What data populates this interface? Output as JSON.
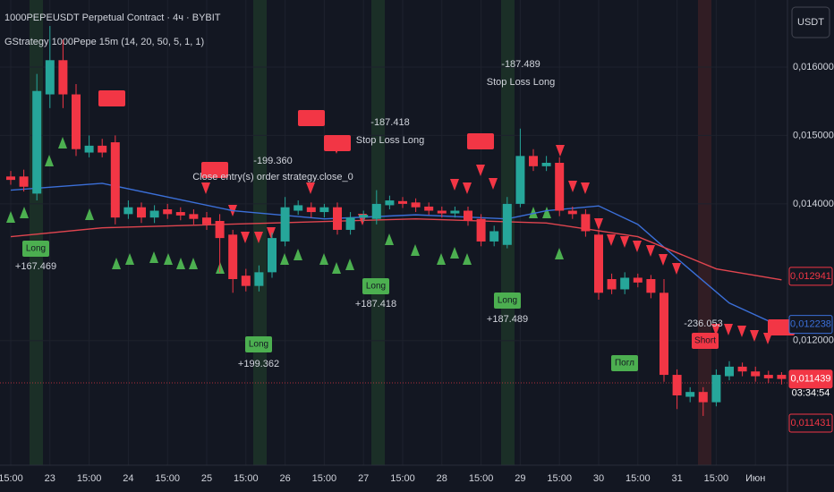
{
  "chart_data": {
    "type": "candlestick",
    "title": "1000PEPEUSDT Perpetual Contract · 4ч · BYBIT",
    "subtitle": "GStrategy 1000Pepe 15m (14, 20, 50, 5, 1, 1)",
    "currency": "USDT",
    "countdown": "03:34:54",
    "categories": [
      "15:00",
      null,
      null,
      "23",
      null,
      null,
      "15:00",
      null,
      null,
      "24",
      null,
      null,
      "15:00",
      null,
      null,
      "25",
      null,
      null,
      "15:00",
      null,
      null,
      "26",
      null,
      null,
      "15:00",
      null,
      null,
      "27",
      null,
      null,
      "15:00",
      null,
      null,
      "28",
      null,
      null,
      "15:00",
      null,
      null,
      "29",
      null,
      null,
      "15:00",
      null,
      null,
      "30",
      null,
      null,
      "15:00",
      null,
      null,
      "31",
      null,
      null,
      "15:00",
      null,
      null,
      "Июн",
      null,
      null
    ],
    "open": [
      0.0144,
      0.0144,
      0.01415,
      0.0156,
      0.0161,
      0.0156,
      0.01475,
      0.01485,
      0.0149,
      0.01385,
      0.01395,
      0.0138,
      0.01392,
      0.01388,
      0.01385,
      0.0138,
      0.01375,
      0.01355,
      0.01295,
      0.0128,
      0.013,
      0.01345,
      0.0139,
      0.01395,
      0.01388,
      0.01395,
      0.01362,
      0.0138,
      0.01378,
      0.01398,
      0.01404,
      0.01402,
      0.01396,
      0.0139,
      0.01386,
      0.0139,
      0.01378,
      0.01345,
      0.0134,
      0.014,
      0.0147,
      0.01455,
      0.0146,
      0.0139,
      0.01385,
      0.01355,
      0.0129,
      0.01275,
      0.01292,
      0.0129,
      0.0127,
      0.0115,
      0.01118,
      0.01125,
      0.0111,
      0.01148,
      0.01162,
      0.01155,
      0.0115,
      0.0115
    ],
    "close": [
      0.01435,
      0.01425,
      0.01565,
      0.0161,
      0.0156,
      0.0148,
      0.01485,
      0.01475,
      0.0138,
      0.01395,
      0.0138,
      0.0139,
      0.01385,
      0.01383,
      0.01378,
      0.0137,
      0.0135,
      0.0129,
      0.0128,
      0.013,
      0.0135,
      0.01395,
      0.01398,
      0.01388,
      0.01395,
      0.01362,
      0.0138,
      0.01384,
      0.014,
      0.01405,
      0.014,
      0.01395,
      0.0139,
      0.01386,
      0.0139,
      0.01375,
      0.01345,
      0.0136,
      0.014,
      0.0147,
      0.01455,
      0.0146,
      0.0139,
      0.01385,
      0.0136,
      0.0127,
      0.01275,
      0.01292,
      0.01285,
      0.0127,
      0.0115,
      0.0112,
      0.01125,
      0.0111,
      0.0115,
      0.01162,
      0.01155,
      0.01148,
      0.01145,
      0.01144
    ],
    "high": [
      0.01448,
      0.0145,
      0.0159,
      0.0166,
      0.0164,
      0.01575,
      0.015,
      0.01495,
      0.015,
      0.01405,
      0.01402,
      0.01398,
      0.014,
      0.01395,
      0.01392,
      0.01388,
      0.01385,
      0.01362,
      0.01305,
      0.0131,
      0.01358,
      0.0141,
      0.01405,
      0.01402,
      0.014,
      0.01402,
      0.01388,
      0.0139,
      0.0142,
      0.01412,
      0.0141,
      0.01408,
      0.01402,
      0.01396,
      0.01396,
      0.01396,
      0.01385,
      0.01368,
      0.0141,
      0.0151,
      0.0148,
      0.0147,
      0.01468,
      0.01396,
      0.01392,
      0.01362,
      0.01298,
      0.013,
      0.01298,
      0.01296,
      0.0129,
      0.01158,
      0.01132,
      0.01132,
      0.01158,
      0.0117,
      0.01168,
      0.01162,
      0.01156,
      0.01154
    ],
    "low": [
      0.01428,
      0.01418,
      0.01405,
      0.0154,
      0.0154,
      0.0147,
      0.01468,
      0.01468,
      0.0137,
      0.01378,
      0.01372,
      0.01372,
      0.01378,
      0.01376,
      0.0137,
      0.01362,
      0.013,
      0.0127,
      0.01272,
      0.01272,
      0.01292,
      0.01338,
      0.01384,
      0.0138,
      0.0138,
      0.01355,
      0.01355,
      0.01374,
      0.0137,
      0.01392,
      0.01394,
      0.01388,
      0.01384,
      0.0138,
      0.0138,
      0.01368,
      0.01338,
      0.01338,
      0.01335,
      0.01395,
      0.01448,
      0.01448,
      0.01382,
      0.01378,
      0.01352,
      0.0126,
      0.01268,
      0.01268,
      0.01278,
      0.01262,
      0.0114,
      0.011,
      0.0111,
      0.0109,
      0.01104,
      0.01142,
      0.01148,
      0.0114,
      0.01138,
      0.01136
    ],
    "up_color": "#26a69a",
    "down_color": "#f23645",
    "series": [
      {
        "color": "#3b6fd8",
        "x": [
          0,
          7,
          17,
          24,
          31,
          38,
          41,
          45,
          48,
          51,
          55,
          59
        ],
        "values": [
          0.0142,
          0.0143,
          0.0139,
          0.01378,
          0.01384,
          0.01378,
          0.0139,
          0.01397,
          0.0137,
          0.0132,
          0.01255,
          0.0122
        ]
      },
      {
        "color": "#e0454f",
        "x": [
          0,
          7,
          20,
          31,
          41,
          48,
          54,
          59
        ],
        "values": [
          0.01352,
          0.01365,
          0.01372,
          0.01378,
          0.01372,
          0.01352,
          0.01305,
          0.01289
        ]
      }
    ],
    "ylim": [
      0.01018,
      0.01698
    ],
    "yticks": [
      {
        "value": 0.016,
        "label": "0,016000"
      },
      {
        "value": 0.015,
        "label": "0,015000"
      },
      {
        "value": 0.014,
        "label": "0,014000"
      },
      {
        "value": 0.012,
        "label": "0,012000"
      }
    ],
    "grid": true,
    "price_labels": [
      {
        "value": 0.012941,
        "label": "0,012941",
        "color": "#f23645"
      },
      {
        "value": 0.012238,
        "label": "0,012238",
        "color": "#3b6fd8"
      },
      {
        "value": 0.011439,
        "label": "0,011439",
        "color": "#f23645"
      }
    ],
    "extra_price_label": "0,011431",
    "annotations": [
      "-187.489",
      "Stop Loss Long",
      "-187.418",
      "Stop Loss Long",
      "-199.360",
      "Close entry(s) order strategy.close_0",
      "Long",
      "+167.469",
      "Long",
      "+199.362",
      "Long",
      "+187.418",
      "Long",
      "+187.489",
      "-236.053",
      "Short",
      "Погл"
    ]
  }
}
